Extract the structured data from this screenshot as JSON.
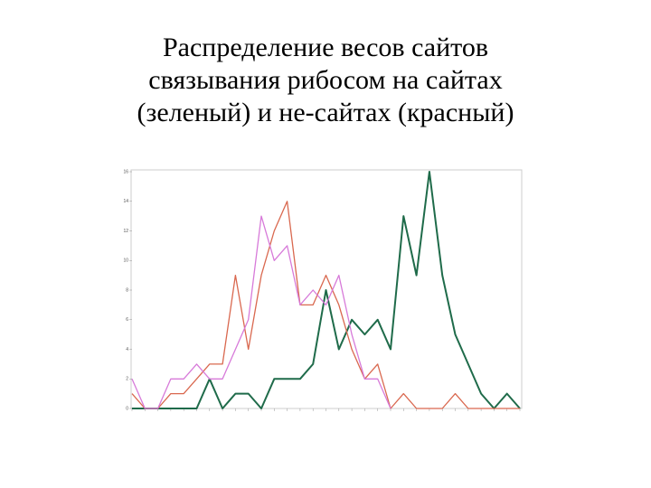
{
  "chart_data": {
    "type": "line",
    "title": [
      "Распределение весов сайтов",
      "связывания рибосом на сайтах",
      "(зеленый) и не-сайтах (красный)"
    ],
    "categories": [
      null,
      null,
      null,
      null,
      null,
      null,
      null,
      null,
      null,
      null,
      null,
      null,
      null,
      null,
      null,
      null,
      null,
      null,
      null,
      null,
      null,
      null,
      null,
      null,
      null,
      null,
      null,
      null,
      null,
      null,
      null
    ],
    "series": [
      {
        "color": "#1f6b4a",
        "values": [
          0,
          0,
          0,
          0,
          0,
          0,
          2,
          0,
          1,
          1,
          0,
          2,
          2,
          2,
          3,
          8,
          4,
          6,
          5,
          6,
          4,
          13,
          9,
          16,
          9,
          5,
          3,
          1,
          0,
          1,
          0
        ]
      },
      {
        "color": "#d9684f",
        "values": [
          1,
          0,
          0,
          1,
          1,
          2,
          3,
          3,
          9,
          4,
          9,
          12,
          14,
          7,
          7,
          9,
          7,
          4,
          2,
          3,
          0,
          1,
          0,
          0,
          0,
          1,
          0,
          0,
          0,
          0,
          0
        ]
      },
      {
        "color": "#d77ad9",
        "values": [
          2,
          0,
          0,
          2,
          2,
          3,
          2,
          2,
          4,
          6,
          13,
          10,
          11,
          7,
          8,
          7,
          9,
          5,
          2,
          2,
          0,
          null,
          null,
          null,
          null,
          null,
          null,
          null,
          null,
          null,
          null
        ]
      }
    ],
    "ylim": [
      0,
      16
    ],
    "yticks": [
      0,
      2,
      4,
      6,
      8,
      10,
      12,
      14,
      16
    ]
  }
}
